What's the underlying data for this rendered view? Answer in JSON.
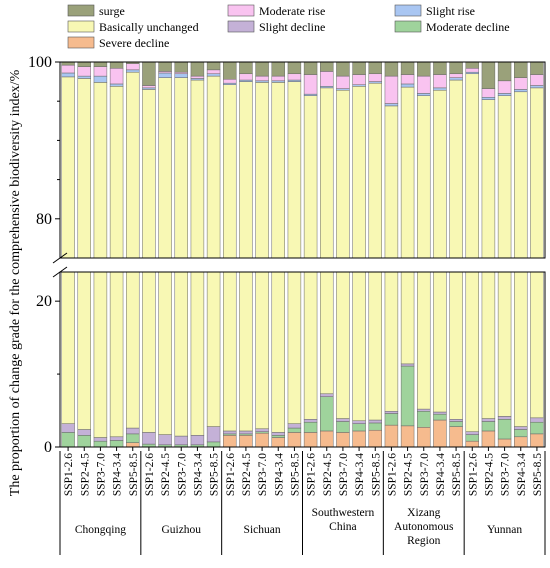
{
  "chart_data": {
    "type": "bar",
    "stacked": true,
    "broken_y_axis": true,
    "ylabel": "The proportion of change grade for the comprehensive biodiversity index/%",
    "y_segments": [
      {
        "range": [
          0,
          24
        ],
        "ticks": [
          0,
          20
        ]
      },
      {
        "range": [
          75,
          100
        ],
        "ticks": [
          80,
          100
        ]
      }
    ],
    "legend": {
      "placement": "top",
      "entries": [
        {
          "name": "surge",
          "color": "#9aa17a"
        },
        {
          "name": "Moderate rise",
          "color": "#f9c3f0"
        },
        {
          "name": "Slight rise",
          "color": "#a9c6f2"
        },
        {
          "name": "Basically unchanged",
          "color": "#f8f8b4"
        },
        {
          "name": "Slight decline",
          "color": "#c4b1d7"
        },
        {
          "name": "Moderate decline",
          "color": "#9fd39c"
        },
        {
          "name": "Severe decline",
          "color": "#f6bb8e"
        }
      ]
    },
    "scenarios": [
      "SSP1-2.6",
      "SSP2-4.5",
      "SSP3-7.0",
      "SSP4-3.4",
      "SSP5-8.5"
    ],
    "groups": [
      {
        "label": "Chongqing",
        "bars": [
          {
            "severe": 0.0,
            "moderate_decline": 2.0,
            "slight_decline": 1.2,
            "slight_rise": 0.5,
            "moderate_rise": 1.0,
            "surge": 0.4
          },
          {
            "severe": 0.0,
            "moderate_decline": 1.6,
            "slight_decline": 0.8,
            "slight_rise": 0.3,
            "moderate_rise": 1.2,
            "surge": 0.6
          },
          {
            "severe": 0.0,
            "moderate_decline": 0.8,
            "slight_decline": 0.5,
            "slight_rise": 0.8,
            "moderate_rise": 1.2,
            "surge": 0.6
          },
          {
            "severe": 0.0,
            "moderate_decline": 0.9,
            "slight_decline": 0.5,
            "slight_rise": 0.3,
            "moderate_rise": 2.0,
            "surge": 0.8
          },
          {
            "severe": 0.6,
            "moderate_decline": 1.2,
            "slight_decline": 0.8,
            "slight_rise": 0.3,
            "moderate_rise": 0.8,
            "surge": 0.2
          }
        ]
      },
      {
        "label": "Guizhou",
        "bars": [
          {
            "severe": 0.0,
            "moderate_decline": 0.4,
            "slight_decline": 1.6,
            "slight_rise": 0.2,
            "moderate_rise": 0.3,
            "surge": 3.0
          },
          {
            "severe": 0.0,
            "moderate_decline": 0.3,
            "slight_decline": 1.4,
            "slight_rise": 0.6,
            "moderate_rise": 0.2,
            "surge": 1.2
          },
          {
            "severe": 0.0,
            "moderate_decline": 0.3,
            "slight_decline": 1.2,
            "slight_rise": 0.5,
            "moderate_rise": 0.2,
            "surge": 1.3
          },
          {
            "severe": 0.0,
            "moderate_decline": 0.3,
            "slight_decline": 1.3,
            "slight_rise": 0.2,
            "moderate_rise": 0.3,
            "surge": 1.8
          },
          {
            "severe": 0.0,
            "moderate_decline": 0.7,
            "slight_decline": 2.1,
            "slight_rise": 0.3,
            "moderate_rise": 0.5,
            "surge": 1.0
          }
        ]
      },
      {
        "label": "Sichuan",
        "bars": [
          {
            "severe": 1.6,
            "moderate_decline": 0.2,
            "slight_decline": 0.4,
            "slight_rise": 0.2,
            "moderate_rise": 0.5,
            "surge": 2.2
          },
          {
            "severe": 1.6,
            "moderate_decline": 0.2,
            "slight_decline": 0.4,
            "slight_rise": 0.2,
            "moderate_rise": 0.8,
            "surge": 1.5
          },
          {
            "severe": 1.9,
            "moderate_decline": 0.2,
            "slight_decline": 0.4,
            "slight_rise": 0.2,
            "moderate_rise": 0.6,
            "surge": 1.8
          },
          {
            "severe": 1.3,
            "moderate_decline": 0.3,
            "slight_decline": 0.4,
            "slight_rise": 0.2,
            "moderate_rise": 0.6,
            "surge": 1.8
          },
          {
            "severe": 2.0,
            "moderate_decline": 0.6,
            "slight_decline": 0.6,
            "slight_rise": 0.2,
            "moderate_rise": 0.8,
            "surge": 1.5
          }
        ]
      },
      {
        "label": "Southwestern China",
        "bars": [
          {
            "severe": 2.0,
            "moderate_decline": 1.4,
            "slight_decline": 0.4,
            "slight_rise": 0.2,
            "moderate_rise": 2.5,
            "surge": 1.6
          },
          {
            "severe": 2.2,
            "moderate_decline": 4.7,
            "slight_decline": 0.4,
            "slight_rise": 0.2,
            "moderate_rise": 1.9,
            "surge": 1.2
          },
          {
            "severe": 2.0,
            "moderate_decline": 1.5,
            "slight_decline": 0.4,
            "slight_rise": 0.2,
            "moderate_rise": 1.6,
            "surge": 1.8
          },
          {
            "severe": 2.2,
            "moderate_decline": 1.0,
            "slight_decline": 0.4,
            "slight_rise": 0.2,
            "moderate_rise": 1.3,
            "surge": 1.6
          },
          {
            "severe": 2.3,
            "moderate_decline": 1.0,
            "slight_decline": 0.4,
            "slight_rise": 0.2,
            "moderate_rise": 1.0,
            "surge": 1.5
          }
        ]
      },
      {
        "label": "Xizang Autonomous Region",
        "bars": [
          {
            "severe": 3.0,
            "moderate_decline": 1.6,
            "slight_decline": 0.3,
            "slight_rise": 0.3,
            "moderate_rise": 3.5,
            "surge": 1.8
          },
          {
            "severe": 2.9,
            "moderate_decline": 8.2,
            "slight_decline": 0.3,
            "slight_rise": 0.4,
            "moderate_rise": 1.2,
            "surge": 1.6
          },
          {
            "severe": 2.7,
            "moderate_decline": 2.2,
            "slight_decline": 0.3,
            "slight_rise": 0.3,
            "moderate_rise": 2.2,
            "surge": 1.8
          },
          {
            "severe": 3.7,
            "moderate_decline": 0.8,
            "slight_decline": 0.3,
            "slight_rise": 0.3,
            "moderate_rise": 1.7,
            "surge": 1.6
          },
          {
            "severe": 2.8,
            "moderate_decline": 0.7,
            "slight_decline": 0.3,
            "slight_rise": 0.3,
            "moderate_rise": 0.5,
            "surge": 1.5
          }
        ]
      },
      {
        "label": "Yunnan",
        "bars": [
          {
            "severe": 0.8,
            "moderate_decline": 0.9,
            "slight_decline": 0.4,
            "slight_rise": 0.2,
            "moderate_rise": 0.5,
            "surge": 0.8
          },
          {
            "severe": 2.2,
            "moderate_decline": 1.3,
            "slight_decline": 0.4,
            "slight_rise": 0.3,
            "moderate_rise": 1.1,
            "surge": 3.4
          },
          {
            "severe": 1.1,
            "moderate_decline": 2.7,
            "slight_decline": 0.4,
            "slight_rise": 0.3,
            "moderate_rise": 1.6,
            "surge": 2.4
          },
          {
            "severe": 1.4,
            "moderate_decline": 1.0,
            "slight_decline": 0.4,
            "slight_rise": 0.3,
            "moderate_rise": 1.5,
            "surge": 2.0
          },
          {
            "severe": 1.8,
            "moderate_decline": 1.6,
            "slight_decline": 0.6,
            "slight_rise": 0.3,
            "moderate_rise": 1.4,
            "surge": 1.6
          }
        ]
      }
    ]
  }
}
